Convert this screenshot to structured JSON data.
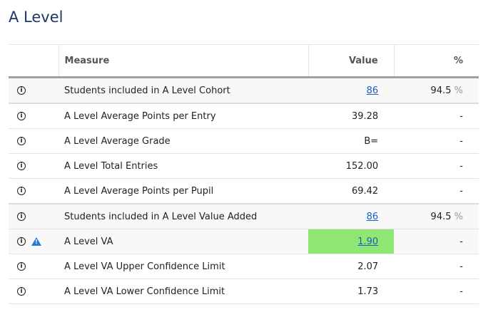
{
  "title": "A Level",
  "headers": {
    "measure": "Measure",
    "value": "Value",
    "pct": "%"
  },
  "rows": [
    {
      "measure": "Students included in A Level Cohort",
      "value": "86",
      "value_link": true,
      "pct": "94.5",
      "pct_unit": "%"
    },
    {
      "measure": "A Level Average Points per Entry",
      "value": "39.28",
      "pct": "-"
    },
    {
      "measure": "A Level Average Grade",
      "value": "B=",
      "pct": "-"
    },
    {
      "measure": "A Level Total Entries",
      "value": "152.00",
      "pct": "-"
    },
    {
      "measure": "A Level Average Points per Pupil",
      "value": "69.42",
      "pct": "-"
    },
    {
      "measure": "Students included in A Level Value Added",
      "value": "86",
      "value_link": true,
      "pct": "94.5",
      "pct_unit": "%"
    },
    {
      "measure": "A Level VA",
      "value": "1.90",
      "value_link": true,
      "warning": true,
      "highlight": "#8fe672",
      "pct": "-"
    },
    {
      "measure": "A Level VA Upper Confidence Limit",
      "value": "2.07",
      "pct": "-"
    },
    {
      "measure": "A Level VA Lower Confidence Limit",
      "value": "1.73",
      "pct": "-"
    }
  ],
  "icons": {
    "info": "info-circle-icon",
    "warning": "warning-triangle-icon"
  },
  "info_glyph": "i",
  "warning_glyph": "!"
}
